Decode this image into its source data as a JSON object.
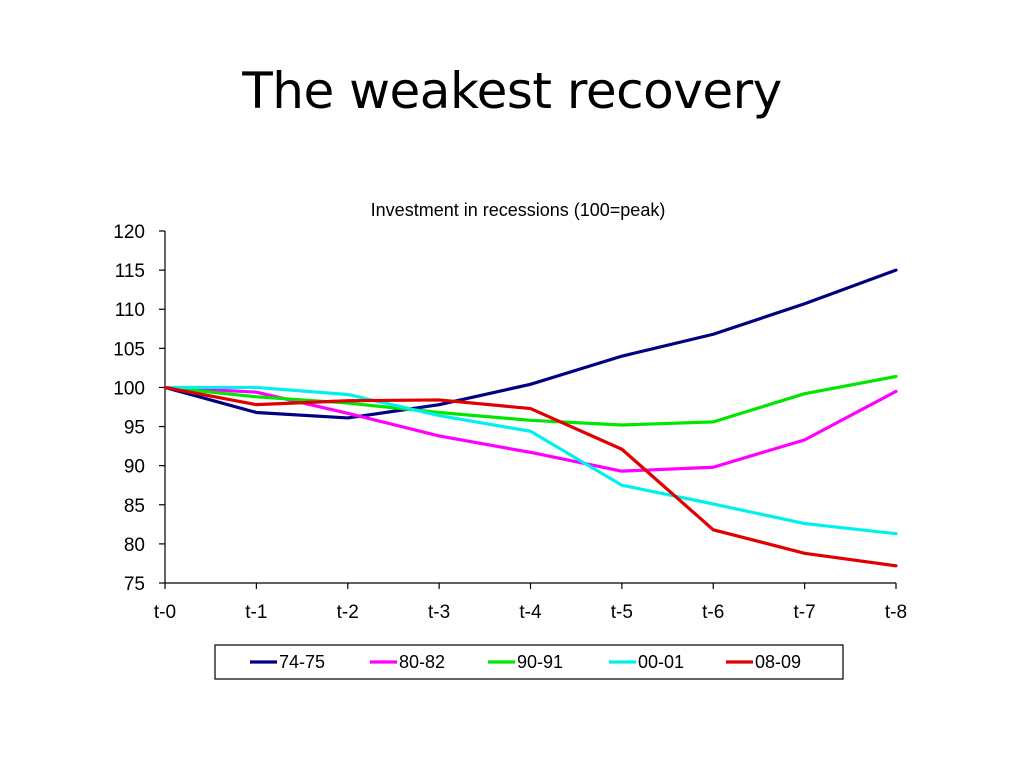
{
  "slide": {
    "title": "The weakest recovery"
  },
  "chart_data": {
    "type": "line",
    "title": "Investment in recessions (100=peak)",
    "xlabel": "",
    "ylabel": "",
    "categories": [
      "t-0",
      "t-1",
      "t-2",
      "t-3",
      "t-4",
      "t-5",
      "t-6",
      "t-7",
      "t-8"
    ],
    "ylim": [
      75,
      120
    ],
    "yticks": [
      75,
      80,
      85,
      90,
      95,
      100,
      105,
      110,
      115,
      120
    ],
    "grid": false,
    "legend_position": "bottom",
    "series": [
      {
        "name": "74-75",
        "color": "#000080",
        "values": [
          100,
          96.8,
          96.1,
          97.8,
          100.4,
          104.0,
          106.8,
          110.7,
          115.0
        ]
      },
      {
        "name": "80-82",
        "color": "#FF00FF",
        "values": [
          100,
          99.4,
          96.7,
          93.8,
          91.7,
          89.3,
          89.8,
          93.3,
          99.5
        ]
      },
      {
        "name": "90-91",
        "color": "#00E600",
        "values": [
          100,
          98.8,
          98.0,
          96.8,
          95.8,
          95.2,
          95.6,
          99.2,
          101.4
        ]
      },
      {
        "name": "00-01",
        "color": "#00F0F0",
        "values": [
          100,
          100.0,
          99.1,
          96.4,
          94.4,
          87.5,
          85.1,
          82.6,
          81.3
        ]
      },
      {
        "name": "08-09",
        "color": "#E00000",
        "values": [
          100,
          97.8,
          98.3,
          98.4,
          97.3,
          92.1,
          81.8,
          78.8,
          77.2
        ]
      }
    ]
  }
}
